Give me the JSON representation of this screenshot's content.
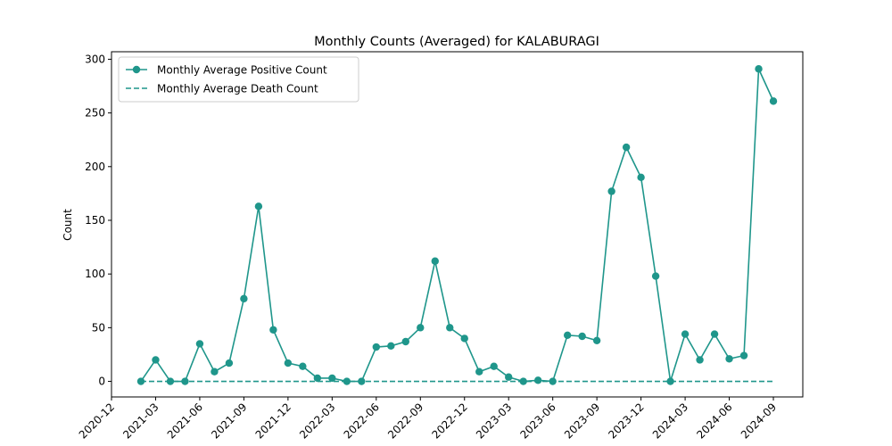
{
  "chart_data": {
    "type": "line",
    "title": "Monthly Counts (Averaged) for KALABURAGI",
    "y_label": "Count",
    "x": [
      "2021-02",
      "2021-03",
      "2021-04",
      "2021-05",
      "2021-06",
      "2021-07",
      "2021-08",
      "2021-09",
      "2021-10",
      "2021-11",
      "2021-12",
      "2022-01",
      "2022-02",
      "2022-03",
      "2022-04",
      "2022-05",
      "2022-06",
      "2022-07",
      "2022-08",
      "2022-09",
      "2022-10",
      "2022-11",
      "2022-12",
      "2023-01",
      "2023-02",
      "2023-03",
      "2023-04",
      "2023-05",
      "2023-06",
      "2023-07",
      "2023-08",
      "2023-09",
      "2023-10",
      "2023-11",
      "2023-12",
      "2024-01",
      "2024-02",
      "2024-03",
      "2024-04",
      "2024-05",
      "2024-06",
      "2024-07",
      "2024-08",
      "2024-09"
    ],
    "series": [
      {
        "name": "Monthly Average Positive Count",
        "color": "#1f968b",
        "style": "solid",
        "marker": true,
        "values": [
          0,
          20,
          0,
          0,
          35,
          9,
          17,
          77,
          163,
          48,
          17,
          14,
          3,
          3,
          0,
          0,
          32,
          33,
          37,
          50,
          112,
          50,
          40,
          9,
          14,
          4,
          0,
          1,
          0,
          43,
          42,
          38,
          177,
          218,
          190,
          98,
          0,
          44,
          20,
          44,
          21,
          24,
          291,
          261
        ]
      },
      {
        "name": "Monthly Average Death Count",
        "color": "#1f968b",
        "style": "dashed",
        "marker": false,
        "values": [
          0,
          0,
          0,
          0,
          0,
          0,
          0,
          0,
          0,
          0,
          0,
          0,
          0,
          0,
          0,
          0,
          0,
          0,
          0,
          0,
          0,
          0,
          0,
          0,
          0,
          0,
          0,
          0,
          0,
          0,
          0,
          0,
          0,
          0,
          0,
          0,
          0,
          0,
          0,
          0,
          0,
          0,
          0,
          0
        ]
      }
    ],
    "xlim": [
      "2020-12",
      "2024-11"
    ],
    "xticks": [
      "2020-12",
      "2021-03",
      "2021-06",
      "2021-09",
      "2021-12",
      "2022-03",
      "2022-06",
      "2022-09",
      "2022-12",
      "2023-03",
      "2023-06",
      "2023-09",
      "2023-12",
      "2024-03",
      "2024-06",
      "2024-09"
    ],
    "ylim": [
      -14.5,
      307
    ],
    "yticks": [
      0,
      50,
      100,
      150,
      200,
      250,
      300
    ],
    "legend": "upper left",
    "grid": false
  }
}
